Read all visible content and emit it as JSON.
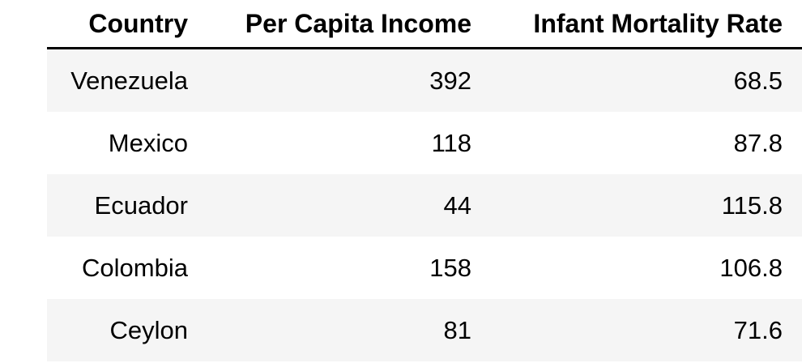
{
  "table": {
    "columns": [
      "Country",
      "Per Capita Income",
      "Infant Mortality Rate"
    ],
    "rows": [
      {
        "country": "Venezuela",
        "income": "392",
        "imr": "68.5"
      },
      {
        "country": "Mexico",
        "income": "118",
        "imr": "87.8"
      },
      {
        "country": "Ecuador",
        "income": "44",
        "imr": "115.8"
      },
      {
        "country": "Colombia",
        "income": "158",
        "imr": "106.8"
      },
      {
        "country": "Ceylon",
        "income": "81",
        "imr": "71.6"
      }
    ]
  }
}
